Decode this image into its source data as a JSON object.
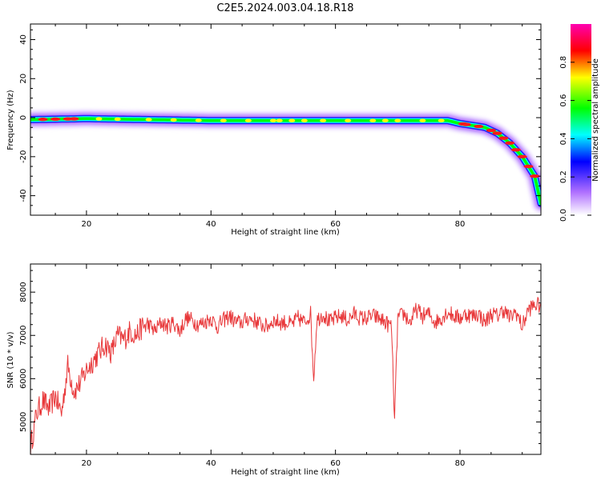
{
  "title": "C2E5.2024.003.04.18.R18",
  "chart_data": [
    {
      "type": "heatmap",
      "xlabel": "Height of straight line (km)",
      "ylabel": "Frequency (Hz)",
      "xlim": [
        11,
        93
      ],
      "ylim": [
        -50,
        48
      ],
      "xticks": [
        "20",
        "40",
        "60",
        "80"
      ],
      "yticks": [
        "40",
        "20",
        "0",
        "-20",
        "-40"
      ],
      "ridge": {
        "x": [
          11,
          20,
          30,
          40,
          50,
          60,
          70,
          78,
          80,
          82,
          84,
          86,
          88,
          90,
          92,
          93
        ],
        "y": [
          -1,
          -0.5,
          -1,
          -1.5,
          -1.5,
          -1.5,
          -1.5,
          -1.5,
          -3,
          -4,
          -5,
          -8,
          -13,
          -20,
          -30,
          -44
        ]
      },
      "colorbar": {
        "label": "Normalized spectral amplitude",
        "ticks": [
          "0.0",
          "0.2",
          "0.4",
          "0.6",
          "0.8"
        ],
        "range": [
          0,
          1
        ],
        "colors": [
          "#ffffff",
          "#b070ff",
          "#0000ff",
          "#00ffff",
          "#00ff00",
          "#ffff00",
          "#ff0000",
          "#ff00b0"
        ]
      },
      "grid": false
    },
    {
      "type": "line",
      "xlabel": "Height of straight line (km)",
      "ylabel": "SNR (10 * v/v)",
      "xlim": [
        11,
        93
      ],
      "ylim": [
        4250,
        8650
      ],
      "xticks": [
        "20",
        "40",
        "60",
        "80"
      ],
      "yticks": [
        "5000",
        "6000",
        "7000",
        "8000"
      ],
      "color": "#e8383a",
      "x": [
        11,
        12,
        13,
        14,
        15,
        16,
        17,
        18,
        19,
        20,
        21,
        22,
        23,
        24,
        25,
        26,
        27,
        28,
        29,
        30,
        31,
        32,
        33,
        34,
        35,
        36,
        37,
        38,
        39,
        40,
        41,
        42,
        43,
        44,
        45,
        46,
        47,
        48,
        49,
        50,
        51,
        52,
        53,
        54,
        55,
        56,
        56.5,
        57,
        58,
        59,
        60,
        61,
        62,
        63,
        64,
        65,
        66,
        67,
        68,
        69,
        69.5,
        70,
        71,
        72,
        73,
        74,
        75,
        76,
        77,
        78,
        79,
        80,
        81,
        82,
        83,
        84,
        85,
        86,
        87,
        88,
        89,
        90,
        91,
        92,
        93
      ],
      "values": [
        4400,
        5200,
        5500,
        5300,
        5600,
        5200,
        6300,
        5700,
        5900,
        6200,
        6400,
        6600,
        6800,
        6600,
        7000,
        6900,
        7100,
        7000,
        7200,
        7250,
        7100,
        7300,
        7200,
        7300,
        7100,
        7400,
        7350,
        7250,
        7300,
        7400,
        7200,
        7350,
        7450,
        7300,
        7300,
        7400,
        7350,
        7250,
        7200,
        7350,
        7300,
        7300,
        7250,
        7400,
        7300,
        7500,
        6000,
        7350,
        7500,
        7300,
        7400,
        7450,
        7350,
        7500,
        7400,
        7400,
        7450,
        7400,
        7300,
        7200,
        5000,
        7400,
        7500,
        7300,
        7600,
        7450,
        7500,
        7300,
        7400,
        7550,
        7450,
        7400,
        7500,
        7450,
        7500,
        7300,
        7500,
        7450,
        7600,
        7400,
        7550,
        7200,
        7600,
        7700,
        7700
      ]
    }
  ]
}
